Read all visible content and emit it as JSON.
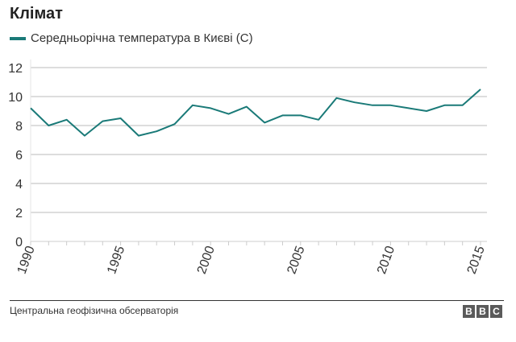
{
  "chart_data": {
    "type": "line",
    "title": "Клімат",
    "legend": [
      "Середньорічна температура в Києві (С)"
    ],
    "x": [
      1990,
      1991,
      1992,
      1993,
      1994,
      1995,
      1996,
      1997,
      1998,
      1999,
      2000,
      2001,
      2002,
      2003,
      2004,
      2005,
      2006,
      2007,
      2008,
      2009,
      2010,
      2011,
      2012,
      2013,
      2014,
      2015
    ],
    "series": [
      {
        "name": "Середньорічна температура в Києві (С)",
        "values": [
          9.2,
          8.0,
          8.4,
          7.3,
          8.3,
          8.5,
          7.3,
          7.6,
          8.1,
          9.4,
          9.2,
          8.8,
          9.3,
          8.2,
          8.7,
          8.7,
          8.4,
          9.9,
          9.6,
          9.4,
          9.4,
          9.2,
          9.0,
          9.4,
          9.4,
          10.5
        ],
        "color": "#1a7a78"
      }
    ],
    "ylim": [
      0,
      12
    ],
    "yticks": [
      "0",
      "2",
      "4",
      "6",
      "8",
      "10",
      "12"
    ],
    "xticks": [
      "1990",
      "1995",
      "2000",
      "2005",
      "2010",
      "2015"
    ],
    "grid": true,
    "legend_position": "top-left"
  },
  "source": "Центральна геофізична обсерваторія",
  "logo": [
    "B",
    "B",
    "C"
  ]
}
